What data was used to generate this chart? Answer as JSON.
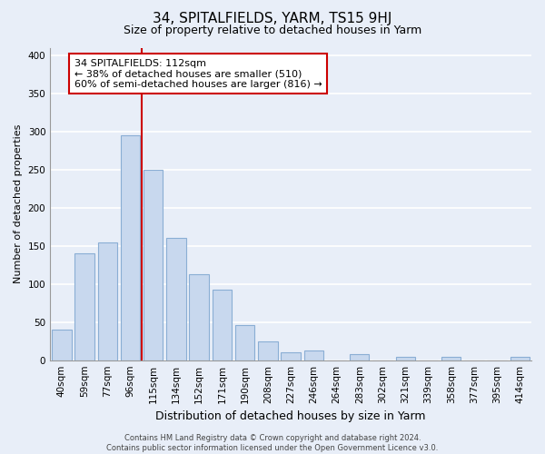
{
  "title": "34, SPITALFIELDS, YARM, TS15 9HJ",
  "subtitle": "Size of property relative to detached houses in Yarm",
  "xlabel": "Distribution of detached houses by size in Yarm",
  "ylabel": "Number of detached properties",
  "categories": [
    "40sqm",
    "59sqm",
    "77sqm",
    "96sqm",
    "115sqm",
    "134sqm",
    "152sqm",
    "171sqm",
    "190sqm",
    "208sqm",
    "227sqm",
    "246sqm",
    "264sqm",
    "283sqm",
    "302sqm",
    "321sqm",
    "339sqm",
    "358sqm",
    "377sqm",
    "395sqm",
    "414sqm"
  ],
  "values": [
    40,
    140,
    155,
    295,
    250,
    160,
    113,
    93,
    46,
    25,
    10,
    13,
    0,
    8,
    0,
    4,
    0,
    4,
    0,
    0,
    4
  ],
  "bar_color": "#c8d8ee",
  "bar_edge_color": "#8aaed4",
  "vline_color": "#cc0000",
  "annotation_text": "34 SPITALFIELDS: 112sqm\n← 38% of detached houses are smaller (510)\n60% of semi-detached houses are larger (816) →",
  "annotation_box_color": "#ffffff",
  "annotation_box_edge": "#cc0000",
  "ylim": [
    0,
    410
  ],
  "yticks": [
    0,
    50,
    100,
    150,
    200,
    250,
    300,
    350,
    400
  ],
  "footnote": "Contains HM Land Registry data © Crown copyright and database right 2024.\nContains public sector information licensed under the Open Government Licence v3.0.",
  "background_color": "#e8eef8",
  "grid_color": "#ffffff",
  "title_fontsize": 11,
  "subtitle_fontsize": 9,
  "xlabel_fontsize": 9,
  "ylabel_fontsize": 8,
  "tick_fontsize": 7.5,
  "annotation_fontsize": 8
}
